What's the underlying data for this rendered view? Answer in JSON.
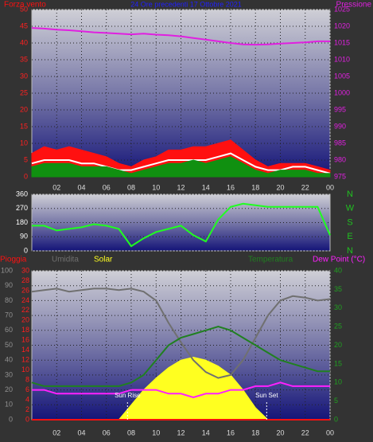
{
  "chart_data": [
    {
      "type": "line",
      "title": "24 Ore precedenti 17 Ottobre 2021",
      "x": [
        0,
        1,
        2,
        3,
        4,
        5,
        6,
        7,
        8,
        9,
        10,
        11,
        12,
        13,
        14,
        15,
        16,
        17,
        18,
        19,
        20,
        21,
        22,
        23,
        24
      ],
      "xlim": [
        0,
        24
      ],
      "xticks": [
        {
          "value": 2,
          "label": "02"
        },
        {
          "value": 4,
          "label": "04"
        },
        {
          "value": 6,
          "label": "06"
        },
        {
          "value": 8,
          "label": "08"
        },
        10,
        12,
        14,
        16,
        18,
        20,
        22,
        {
          "value": 24,
          "label": "00"
        }
      ],
      "ylim": [
        0,
        50
      ],
      "yticks": [
        0,
        5,
        10,
        15,
        20,
        25,
        30,
        35,
        40,
        45,
        50
      ],
      "y2lim": [
        975,
        1025
      ],
      "y2ticks": [
        975,
        980,
        985,
        990,
        995,
        1000,
        1005,
        1010,
        1015,
        1020,
        1025
      ],
      "grid": true,
      "series": [
        {
          "name": "Forza vento",
          "color": "#ff1010",
          "fill": true,
          "values": [
            7,
            9,
            8,
            9,
            8,
            7,
            6,
            4,
            3,
            5,
            6,
            8,
            8,
            9,
            9,
            10,
            11,
            8,
            5,
            3,
            4,
            4,
            4,
            3,
            2
          ]
        },
        {
          "color": "#ffffff",
          "values": [
            4,
            5,
            5,
            5,
            4,
            4,
            3,
            2,
            2,
            3,
            4,
            5,
            5,
            5,
            5,
            6,
            7,
            5,
            3,
            2,
            2,
            3,
            3,
            2,
            1
          ]
        },
        {
          "color": "#109010",
          "fill": true,
          "values": [
            3,
            4,
            4,
            4,
            3,
            3,
            3,
            2,
            1,
            2,
            3,
            4,
            4,
            5,
            4,
            5,
            6,
            4,
            2,
            1,
            2,
            2,
            2,
            1,
            1
          ]
        },
        {
          "name": "Pressione",
          "color": "#e020e0",
          "axis": "y2",
          "values": [
            1019.5,
            1019.3,
            1019,
            1018.8,
            1018.5,
            1018.2,
            1018,
            1017.8,
            1017.6,
            1017.8,
            1017.5,
            1017.3,
            1017,
            1016.5,
            1016,
            1015.5,
            1015,
            1014.6,
            1014.5,
            1014.6,
            1014.8,
            1015,
            1015.2,
            1015.5,
            1015.5
          ]
        }
      ]
    },
    {
      "type": "line",
      "x": [
        0,
        1,
        2,
        3,
        4,
        5,
        6,
        7,
        8,
        9,
        10,
        11,
        12,
        13,
        14,
        15,
        16,
        17,
        18,
        19,
        20,
        21,
        22,
        23,
        24
      ],
      "xlim": [
        0,
        24
      ],
      "ylim": [
        0,
        360
      ],
      "yticks": [
        0,
        90,
        180,
        270,
        360
      ],
      "y2lim": [
        0,
        360
      ],
      "y2ticks": [
        {
          "value": 0,
          "label": "N"
        },
        {
          "value": 90,
          "label": "E"
        },
        {
          "value": 180,
          "label": "S"
        },
        {
          "value": 270,
          "label": "W"
        },
        {
          "value": 360,
          "label": "N"
        }
      ],
      "grid": true,
      "series": [
        {
          "color": "#20ff20",
          "values": [
            160,
            160,
            130,
            140,
            150,
            170,
            160,
            140,
            30,
            80,
            120,
            140,
            160,
            100,
            60,
            200,
            280,
            300,
            290,
            280,
            280,
            280,
            280,
            280,
            100
          ]
        }
      ]
    },
    {
      "type": "line",
      "x": [
        0,
        1,
        2,
        3,
        4,
        5,
        6,
        7,
        8,
        9,
        10,
        11,
        12,
        13,
        14,
        15,
        16,
        17,
        18,
        19,
        20,
        21,
        22,
        23,
        24
      ],
      "xlim": [
        0,
        24
      ],
      "xticks": [
        {
          "value": 2,
          "label": "02"
        },
        {
          "value": 4,
          "label": "04"
        },
        {
          "value": 6,
          "label": "06"
        },
        {
          "value": 8,
          "label": "08"
        },
        10,
        12,
        14,
        16,
        18,
        20,
        22,
        {
          "value": 24,
          "label": "00"
        }
      ],
      "ylim": [
        0,
        100
      ],
      "yticks": [
        0,
        10,
        20,
        30,
        40,
        50,
        60,
        70,
        80,
        90,
        100
      ],
      "y2lim": [
        0,
        40
      ],
      "y2ticks": [
        0,
        5,
        10,
        15,
        20,
        25,
        30,
        35,
        40
      ],
      "y3lim": [
        0,
        30
      ],
      "y3ticks": [
        0,
        2,
        4,
        6,
        8,
        10,
        12,
        14,
        16,
        18,
        20,
        22,
        24,
        26,
        28,
        30
      ],
      "grid": true,
      "series": [
        {
          "name": "Solar",
          "color": "#ffff20",
          "fill": true,
          "values": [
            0,
            0,
            0,
            0,
            0,
            0,
            0,
            0,
            10,
            20,
            28,
            35,
            40,
            42,
            40,
            36,
            30,
            20,
            8,
            0,
            0,
            0,
            0,
            0,
            0
          ]
        },
        {
          "name": "Pioggia",
          "color": "#ff1010",
          "axis": "y3",
          "values": [
            0,
            0,
            0,
            0,
            0,
            0,
            0,
            0,
            0,
            0,
            0,
            0,
            0,
            0,
            0,
            0,
            0,
            0,
            0,
            0,
            0,
            0,
            0,
            0,
            0
          ]
        },
        {
          "name": "Umidita",
          "color": "#707070",
          "values": [
            86,
            87,
            88,
            86,
            87,
            88,
            88,
            87,
            88,
            86,
            80,
            65,
            52,
            40,
            32,
            28,
            30,
            40,
            55,
            70,
            80,
            83,
            82,
            80,
            81
          ]
        },
        {
          "name": "Temperatura",
          "color": "#208020",
          "axis": "y2",
          "values": [
            10,
            9,
            9,
            9,
            9,
            9,
            9,
            9,
            10,
            12,
            16,
            20,
            22,
            23,
            24,
            25,
            24,
            22,
            20,
            18,
            16,
            15,
            14,
            13,
            13
          ]
        },
        {
          "name": "Dew Point (°C)",
          "color": "#ff20ff",
          "axis": "y2",
          "values": [
            8,
            8,
            7,
            7,
            7,
            7,
            7,
            7,
            8,
            8,
            8,
            7,
            7,
            6,
            7,
            7,
            8,
            8,
            9,
            9,
            10,
            9,
            9,
            9,
            9
          ]
        }
      ],
      "annotations": [
        {
          "text": "Sun Rise",
          "x": 7.7
        },
        {
          "text": "Sun Set",
          "x": 18.9
        }
      ]
    }
  ]
}
